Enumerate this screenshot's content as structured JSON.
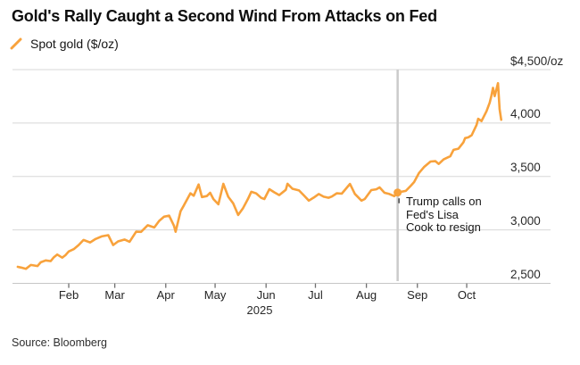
{
  "header": {
    "title": "Gold's Rally Caught a Second Wind From Attacks on Fed",
    "legend_label": "Spot gold ($/oz)"
  },
  "footer": {
    "source": "Source: Bloomberg"
  },
  "colors": {
    "line": "#F8A23C",
    "event_dot": "#F8A23C",
    "event_line": "#CBCBCB",
    "grid": "#D7D7D7",
    "axis_line": "#C6C6C6",
    "tick": "#6F6F6F",
    "leader": "#2B2B2B"
  },
  "chart_data": {
    "type": "line",
    "title": "Gold's Rally Caught a Second Wind From Attacks on Fed",
    "ylabel": "$/oz",
    "legend_position": "top-left",
    "grid": "horizontal",
    "ylim": [
      2500,
      4500
    ],
    "x_range_days": [
      0,
      294
    ],
    "year_label": "2025",
    "x_ticks": [
      {
        "label": "Feb",
        "day": 31
      },
      {
        "label": "Mar",
        "day": 59
      },
      {
        "label": "Apr",
        "day": 90
      },
      {
        "label": "May",
        "day": 120
      },
      {
        "label": "Jun",
        "day": 151
      },
      {
        "label": "Jul",
        "day": 181
      },
      {
        "label": "Aug",
        "day": 212
      },
      {
        "label": "Sep",
        "day": 243
      },
      {
        "label": "Oct",
        "day": 273
      }
    ],
    "y_ticks": [
      {
        "label": "$4,500/oz",
        "value": 4500
      },
      {
        "label": "4,000",
        "value": 4000
      },
      {
        "label": "3,500",
        "value": 3500
      },
      {
        "label": "3,000",
        "value": 3000
      },
      {
        "label": "2,500",
        "value": 2500
      }
    ],
    "annotation": {
      "label": "Trump calls on Fed's Lisa Cook to resign",
      "day": 231,
      "value": 3350,
      "date": "Aug 20"
    },
    "series": [
      {
        "name": "Spot gold ($/oz)",
        "points": [
          [
            0,
            2655
          ],
          [
            2,
            2648
          ],
          [
            5,
            2636
          ],
          [
            8,
            2672
          ],
          [
            12,
            2662
          ],
          [
            14,
            2697
          ],
          [
            17,
            2715
          ],
          [
            20,
            2708
          ],
          [
            22,
            2745
          ],
          [
            24,
            2770
          ],
          [
            27,
            2741
          ],
          [
            29,
            2763
          ],
          [
            31,
            2798
          ],
          [
            34,
            2820
          ],
          [
            37,
            2858
          ],
          [
            40,
            2906
          ],
          [
            44,
            2883
          ],
          [
            47,
            2913
          ],
          [
            51,
            2939
          ],
          [
            55,
            2951
          ],
          [
            58,
            2858
          ],
          [
            61,
            2893
          ],
          [
            65,
            2910
          ],
          [
            68,
            2889
          ],
          [
            72,
            2984
          ],
          [
            75,
            2982
          ],
          [
            79,
            3044
          ],
          [
            83,
            3023
          ],
          [
            86,
            3085
          ],
          [
            89,
            3124
          ],
          [
            92,
            3134
          ],
          [
            95,
            3038
          ],
          [
            96,
            2983
          ],
          [
            99,
            3176
          ],
          [
            101,
            3228
          ],
          [
            105,
            3343
          ],
          [
            107,
            3320
          ],
          [
            110,
            3425
          ],
          [
            112,
            3308
          ],
          [
            115,
            3317
          ],
          [
            117,
            3348
          ],
          [
            119,
            3288
          ],
          [
            122,
            3240
          ],
          [
            125,
            3431
          ],
          [
            128,
            3310
          ],
          [
            131,
            3249
          ],
          [
            134,
            3140
          ],
          [
            137,
            3204
          ],
          [
            140,
            3290
          ],
          [
            142,
            3357
          ],
          [
            145,
            3342
          ],
          [
            148,
            3300
          ],
          [
            150,
            3289
          ],
          [
            153,
            3381
          ],
          [
            156,
            3352
          ],
          [
            159,
            3326
          ],
          [
            163,
            3375
          ],
          [
            164,
            3432
          ],
          [
            167,
            3385
          ],
          [
            171,
            3369
          ],
          [
            174,
            3323
          ],
          [
            177,
            3274
          ],
          [
            180,
            3303
          ],
          [
            183,
            3336
          ],
          [
            186,
            3311
          ],
          [
            189,
            3301
          ],
          [
            191,
            3313
          ],
          [
            194,
            3343
          ],
          [
            197,
            3339
          ],
          [
            202,
            3430
          ],
          [
            205,
            3337
          ],
          [
            209,
            3274
          ],
          [
            211,
            3289
          ],
          [
            215,
            3373
          ],
          [
            218,
            3380
          ],
          [
            220,
            3398
          ],
          [
            223,
            3348
          ],
          [
            226,
            3336
          ],
          [
            229,
            3316
          ],
          [
            231,
            3350
          ],
          [
            236,
            3365
          ],
          [
            239,
            3414
          ],
          [
            241,
            3448
          ],
          [
            244,
            3533
          ],
          [
            247,
            3587
          ],
          [
            251,
            3640
          ],
          [
            254,
            3643
          ],
          [
            256,
            3617
          ],
          [
            259,
            3660
          ],
          [
            263,
            3689
          ],
          [
            265,
            3749
          ],
          [
            268,
            3760
          ],
          [
            271,
            3820
          ],
          [
            272,
            3859
          ],
          [
            274,
            3866
          ],
          [
            276,
            3886
          ],
          [
            279,
            3983
          ],
          [
            280,
            4040
          ],
          [
            282,
            4018
          ],
          [
            285,
            4110
          ],
          [
            287,
            4190
          ],
          [
            288,
            4255
          ],
          [
            289,
            4330
          ],
          [
            290,
            4252
          ],
          [
            292,
            4373
          ],
          [
            293,
            4130
          ],
          [
            294,
            4031
          ]
        ]
      }
    ]
  }
}
